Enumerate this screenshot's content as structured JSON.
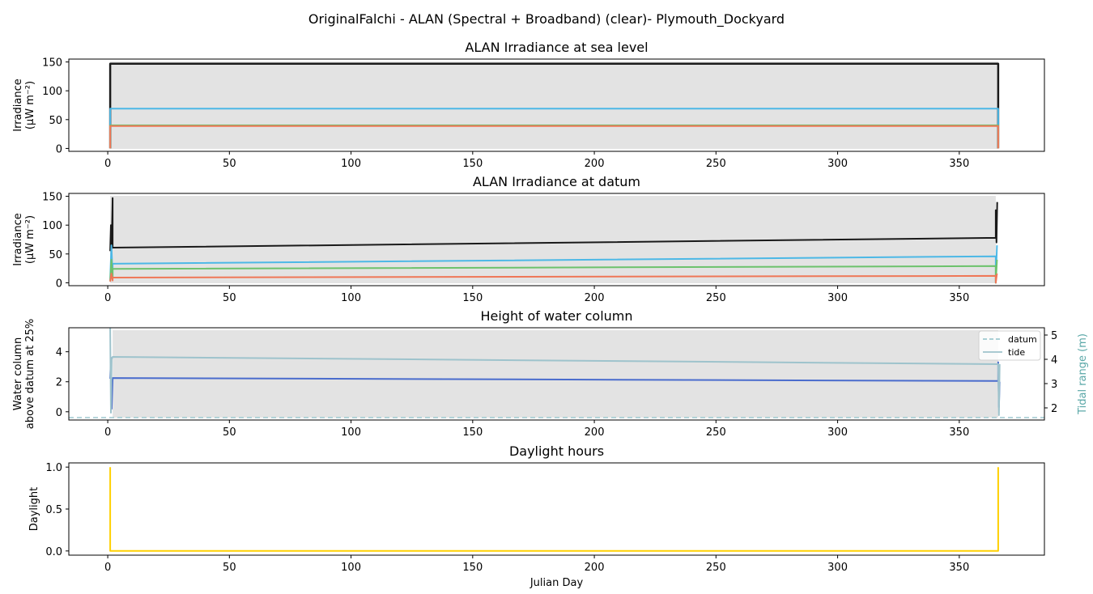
{
  "figure": {
    "suptitle": "OriginalFalchi - ALAN (Spectral + Broadband) (clear)- Plymouth_Dockyard"
  },
  "colors": {
    "axes_edge": "#000000",
    "night_shade": "#e3e3e3",
    "broadband": "#1a1a1a",
    "blue": "#4cb8e6",
    "green": "#6cc26c",
    "red": "#ef7757",
    "water_column": "#4a6ccd",
    "tide": "#9ec3cc",
    "datum": "#9ec9d0",
    "twin_axis_label": "#5ba8a8",
    "daylight": "#ffd000"
  },
  "chart_data": [
    {
      "type": "line",
      "title": "ALAN Irradiance at sea level",
      "xlabel": "",
      "ylabel": [
        "Irradiance",
        "(µW m⁻²)"
      ],
      "xlim": [
        -16,
        385
      ],
      "ylim": [
        -5,
        155
      ],
      "xticks": [
        0,
        50,
        100,
        150,
        200,
        250,
        300,
        350
      ],
      "yticks": [
        0,
        50,
        100,
        150
      ],
      "grid": false,
      "shaded_night_region": [
        1,
        366
      ],
      "series": [
        {
          "role": "broadband",
          "x": [
            1,
            1,
            366,
            366
          ],
          "y": [
            0,
            147,
            147,
            0
          ]
        },
        {
          "role": "blue",
          "x": [
            1,
            1,
            366,
            366
          ],
          "y": [
            0,
            69,
            69,
            0
          ]
        },
        {
          "role": "green",
          "x": [
            1,
            1,
            366,
            366
          ],
          "y": [
            0,
            40,
            40,
            0
          ]
        },
        {
          "role": "red",
          "x": [
            1,
            1,
            366,
            366
          ],
          "y": [
            0,
            39,
            39,
            0
          ]
        }
      ]
    },
    {
      "type": "line",
      "title": "ALAN Irradiance at datum",
      "xlabel": "",
      "ylabel": [
        "Irradiance",
        "(µW m⁻²)"
      ],
      "xlim": [
        -16,
        385
      ],
      "ylim": [
        -5,
        155
      ],
      "xticks": [
        0,
        50,
        100,
        150,
        200,
        250,
        300,
        350
      ],
      "yticks": [
        0,
        50,
        100,
        150
      ],
      "grid": false,
      "shaded_night_region": [
        1,
        365
      ],
      "series": [
        {
          "role": "broadband",
          "x": [
            1,
            1.3,
            1.6,
            2,
            2,
            365,
            365,
            365.3,
            365.6
          ],
          "y": [
            55,
            100,
            60,
            147,
            61,
            78,
            126,
            70,
            140
          ]
        },
        {
          "role": "blue",
          "x": [
            1,
            1.5,
            2,
            2,
            365,
            365,
            365.5
          ],
          "y": [
            5,
            65,
            10,
            33,
            46,
            0,
            65
          ]
        },
        {
          "role": "green",
          "x": [
            1,
            1.5,
            2,
            2,
            365,
            365,
            365.5
          ],
          "y": [
            3,
            40,
            8,
            24,
            29,
            0,
            40
          ]
        },
        {
          "role": "red",
          "x": [
            1,
            1.5,
            2,
            2,
            365,
            365,
            365.5
          ],
          "y": [
            2,
            16,
            4,
            9,
            12,
            0,
            16
          ]
        }
      ]
    },
    {
      "type": "line",
      "title": "Height of water column",
      "xlabel": "",
      "ylabel": [
        "Water column",
        "above datum at 25%"
      ],
      "ylabel2": "Tidal range (m)",
      "xlim": [
        -16,
        385
      ],
      "ylim": [
        -0.55,
        5.6
      ],
      "ylim2": [
        1.5,
        5.3
      ],
      "xticks": [
        0,
        50,
        100,
        150,
        200,
        250,
        300,
        350
      ],
      "yticks": [
        0,
        2,
        4
      ],
      "yticks2": [
        2,
        3,
        4,
        5
      ],
      "grid": false,
      "shaded_night_region": [
        2,
        366
      ],
      "legend": {
        "position": "top-right",
        "entries": [
          {
            "label": "datum",
            "style": "dashed"
          },
          {
            "label": "tide",
            "style": "solid"
          }
        ]
      },
      "series": [
        {
          "role": "water_column",
          "x": [
            1,
            1.3,
            1.6,
            2,
            2,
            366,
            366,
            366.3,
            366.6
          ],
          "y": [
            2.2,
            3.6,
            0.2,
            2.2,
            2.25,
            2.05,
            3.3,
            0.3,
            2.0
          ]
        },
        {
          "role": "tide",
          "axis": "right",
          "x": [
            1,
            1.3,
            1.6,
            2,
            366,
            366.3,
            366.6
          ],
          "y": [
            5.3,
            1.8,
            4.0,
            4.1,
            3.8,
            1.7,
            3.8
          ]
        },
        {
          "role": "datum",
          "axis": "right",
          "style": "dashed",
          "x": [
            -16,
            385
          ],
          "y": [
            1.6,
            1.6
          ]
        }
      ]
    },
    {
      "type": "line",
      "title": "Daylight hours",
      "xlabel": "Julian Day",
      "ylabel": [
        "Daylight"
      ],
      "xlim": [
        -16,
        385
      ],
      "ylim": [
        -0.05,
        1.05
      ],
      "xticks": [
        0,
        50,
        100,
        150,
        200,
        250,
        300,
        350
      ],
      "yticks": [
        0.0,
        0.5,
        1.0
      ],
      "ytick_format": "fixed1",
      "grid": false,
      "series": [
        {
          "role": "daylight",
          "x": [
            1,
            1,
            2,
            366,
            366
          ],
          "y": [
            1,
            0,
            0,
            0,
            1
          ]
        }
      ]
    }
  ]
}
